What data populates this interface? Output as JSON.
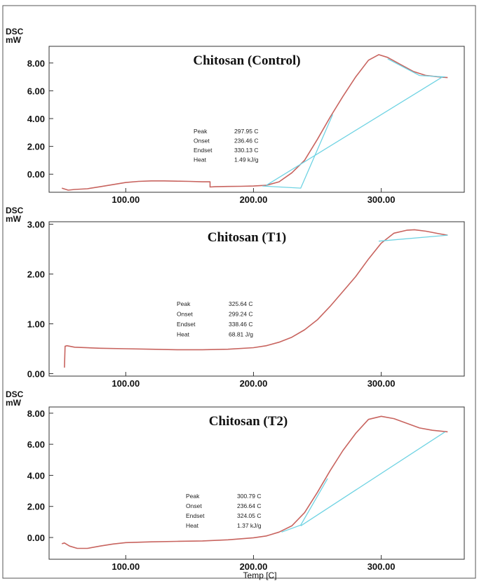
{
  "chart_data": [
    {
      "type": "line",
      "title": "Chitosan (Control)",
      "ylabel": "DSC",
      "yunit": "mW",
      "xlabel": "",
      "xlim": [
        40,
        365
      ],
      "ylim": [
        -1.3,
        9.2
      ],
      "xticks": [
        100,
        200,
        300
      ],
      "xtick_labels": [
        "100.00",
        "200.00",
        "300.00"
      ],
      "yticks": [
        0,
        2,
        4,
        6,
        8
      ],
      "ytick_labels": [
        "0.00",
        "2.00",
        "4.00",
        "6.00",
        "8.00"
      ],
      "grid": false,
      "annotations": [
        {
          "key": "Peak",
          "value": "297.95 C"
        },
        {
          "key": "Onset",
          "value": "236.46 C"
        },
        {
          "key": "Endset",
          "value": "330.13 C"
        },
        {
          "key": "Heat",
          "value": "1.49 kJ/g"
        }
      ],
      "series": [
        {
          "role": "curve",
          "color": "#c8645f",
          "x": [
            50,
            55,
            60,
            70,
            80,
            90,
            100,
            110,
            120,
            130,
            140,
            150,
            160,
            166,
            166,
            170,
            180,
            190,
            200,
            210,
            220,
            230,
            240,
            250,
            260,
            270,
            280,
            290,
            298,
            305,
            315,
            325,
            335,
            345,
            352
          ],
          "y": [
            -1.0,
            -1.15,
            -1.1,
            -1.05,
            -0.9,
            -0.75,
            -0.6,
            -0.52,
            -0.48,
            -0.48,
            -0.5,
            -0.52,
            -0.55,
            -0.55,
            -0.92,
            -0.9,
            -0.88,
            -0.87,
            -0.85,
            -0.8,
            -0.55,
            0.1,
            1.0,
            2.5,
            4.1,
            5.6,
            7.0,
            8.2,
            8.6,
            8.4,
            7.9,
            7.4,
            7.1,
            7.0,
            6.95
          ]
        },
        {
          "role": "baseline",
          "color": "#6fd3e3",
          "x": [
            210,
            348
          ],
          "y": [
            -0.8,
            7.0
          ]
        },
        {
          "role": "tangent",
          "color": "#6fd3e3",
          "x": [
            207,
            237,
            262
          ],
          "y": [
            -0.85,
            -1.0,
            4.3
          ]
        },
        {
          "role": "peak-baseline",
          "color": "#6fd3e3",
          "x": [
            305,
            330,
            350
          ],
          "y": [
            8.3,
            7.1,
            7.0
          ]
        }
      ]
    },
    {
      "type": "line",
      "title": "Chitosan (T1)",
      "ylabel": "DSC",
      "yunit": "mW",
      "xlabel": "",
      "xlim": [
        40,
        365
      ],
      "ylim": [
        -0.05,
        3.05
      ],
      "xticks": [
        100,
        200,
        300
      ],
      "xtick_labels": [
        "100.00",
        "200.00",
        "300.00"
      ],
      "yticks": [
        0,
        1,
        2,
        3
      ],
      "ytick_labels": [
        "0.00",
        "1.00",
        "2.00",
        "3.00"
      ],
      "grid": false,
      "annotations": [
        {
          "key": "Peak",
          "value": "325.64 C"
        },
        {
          "key": "Onset",
          "value": "299.24 C"
        },
        {
          "key": "Endset",
          "value": "338.46 C"
        },
        {
          "key": "Heat",
          "value": "68.81 J/g"
        }
      ],
      "series": [
        {
          "role": "curve",
          "color": "#c8645f",
          "x": [
            52,
            52.5,
            54,
            60,
            80,
            100,
            120,
            140,
            160,
            180,
            200,
            210,
            220,
            230,
            240,
            250,
            260,
            270,
            280,
            290,
            300,
            310,
            320,
            326,
            335,
            345,
            352
          ],
          "y": [
            0.12,
            0.55,
            0.56,
            0.53,
            0.51,
            0.5,
            0.49,
            0.48,
            0.48,
            0.49,
            0.52,
            0.56,
            0.63,
            0.73,
            0.88,
            1.08,
            1.35,
            1.65,
            1.95,
            2.3,
            2.62,
            2.82,
            2.88,
            2.89,
            2.86,
            2.81,
            2.78
          ]
        },
        {
          "role": "baseline",
          "color": "#6fd3e3",
          "x": [
            298,
            352
          ],
          "y": [
            2.66,
            2.78
          ]
        }
      ]
    },
    {
      "type": "line",
      "title": "Chitosan (T2)",
      "ylabel": "DSC",
      "yunit": "mW",
      "xlabel": "Temp  [C]",
      "xlim": [
        40,
        365
      ],
      "ylim": [
        -1.4,
        8.4
      ],
      "xticks": [
        100,
        200,
        300
      ],
      "xtick_labels": [
        "100.00",
        "200.00",
        "300.00"
      ],
      "yticks": [
        0,
        2,
        4,
        6,
        8
      ],
      "ytick_labels": [
        "0.00",
        "2.00",
        "4.00",
        "6.00",
        "8.00"
      ],
      "grid": false,
      "annotations": [
        {
          "key": "Peak",
          "value": "300.79 C"
        },
        {
          "key": "Onset",
          "value": "236.64 C"
        },
        {
          "key": "Endset",
          "value": "324.05 C"
        },
        {
          "key": "Heat",
          "value": "1.37 kJ/g"
        }
      ],
      "series": [
        {
          "role": "curve",
          "color": "#c8645f",
          "x": [
            50,
            52,
            56,
            62,
            70,
            80,
            90,
            100,
            120,
            140,
            160,
            180,
            200,
            210,
            220,
            230,
            240,
            250,
            260,
            270,
            280,
            290,
            300,
            310,
            320,
            330,
            340,
            352
          ],
          "y": [
            -0.4,
            -0.35,
            -0.55,
            -0.7,
            -0.7,
            -0.55,
            -0.42,
            -0.33,
            -0.28,
            -0.25,
            -0.22,
            -0.15,
            -0.02,
            0.1,
            0.35,
            0.75,
            1.6,
            2.9,
            4.3,
            5.6,
            6.7,
            7.6,
            7.8,
            7.65,
            7.35,
            7.05,
            6.9,
            6.8
          ]
        },
        {
          "role": "baseline",
          "color": "#6fd3e3",
          "x": [
            237,
            350
          ],
          "y": [
            0.75,
            6.8
          ]
        },
        {
          "role": "tangent",
          "color": "#6fd3e3",
          "x": [
            222,
            237,
            258
          ],
          "y": [
            0.35,
            0.8,
            3.8
          ]
        }
      ]
    }
  ]
}
